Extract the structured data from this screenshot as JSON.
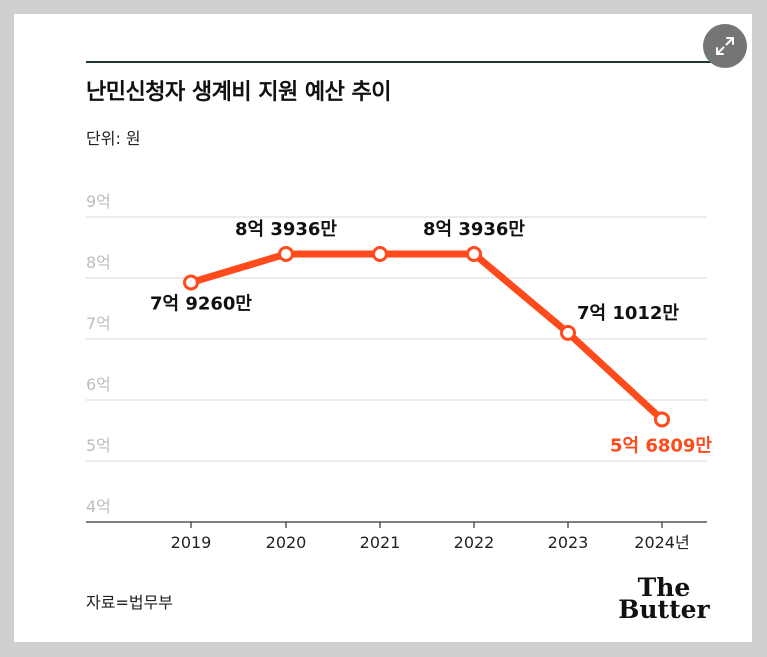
{
  "title": "난민신청자 생계비 지원 예산 추이",
  "unit_label": "단위: 원",
  "source_label": "자료=법무부",
  "logo": {
    "line1": "The",
    "line2": "Butter"
  },
  "expand_icon": "expand-icon",
  "colors": {
    "accent": "#ff4a1c",
    "rule": "#1f3a2c",
    "grid": "#d9d9d9"
  },
  "chart_data": {
    "type": "line",
    "title": "난민신청자 생계비 지원 예산 추이",
    "xlabel": "",
    "ylabel": "단위: 원",
    "categories": [
      "2019",
      "2020",
      "2021",
      "2022",
      "2023",
      "2024년"
    ],
    "series": [
      {
        "name": "생계비 지원 예산",
        "values": [
          792600000,
          839360000,
          839360000,
          839360000,
          710120000,
          568090000
        ],
        "labels": [
          "7억 9260만",
          "8억 3936만",
          "",
          "8억 3936만",
          "7억 1012만",
          "5억 6809만"
        ]
      }
    ],
    "y_ticks": [
      {
        "value": 400000000,
        "label": "4억"
      },
      {
        "value": 500000000,
        "label": "5억"
      },
      {
        "value": 600000000,
        "label": "6억"
      },
      {
        "value": 700000000,
        "label": "7억"
      },
      {
        "value": 800000000,
        "label": "8억"
      },
      {
        "value": 900000000,
        "label": "9억"
      }
    ],
    "ylim": [
      400000000,
      900000000
    ],
    "highlight_index": 5,
    "grid": true
  }
}
